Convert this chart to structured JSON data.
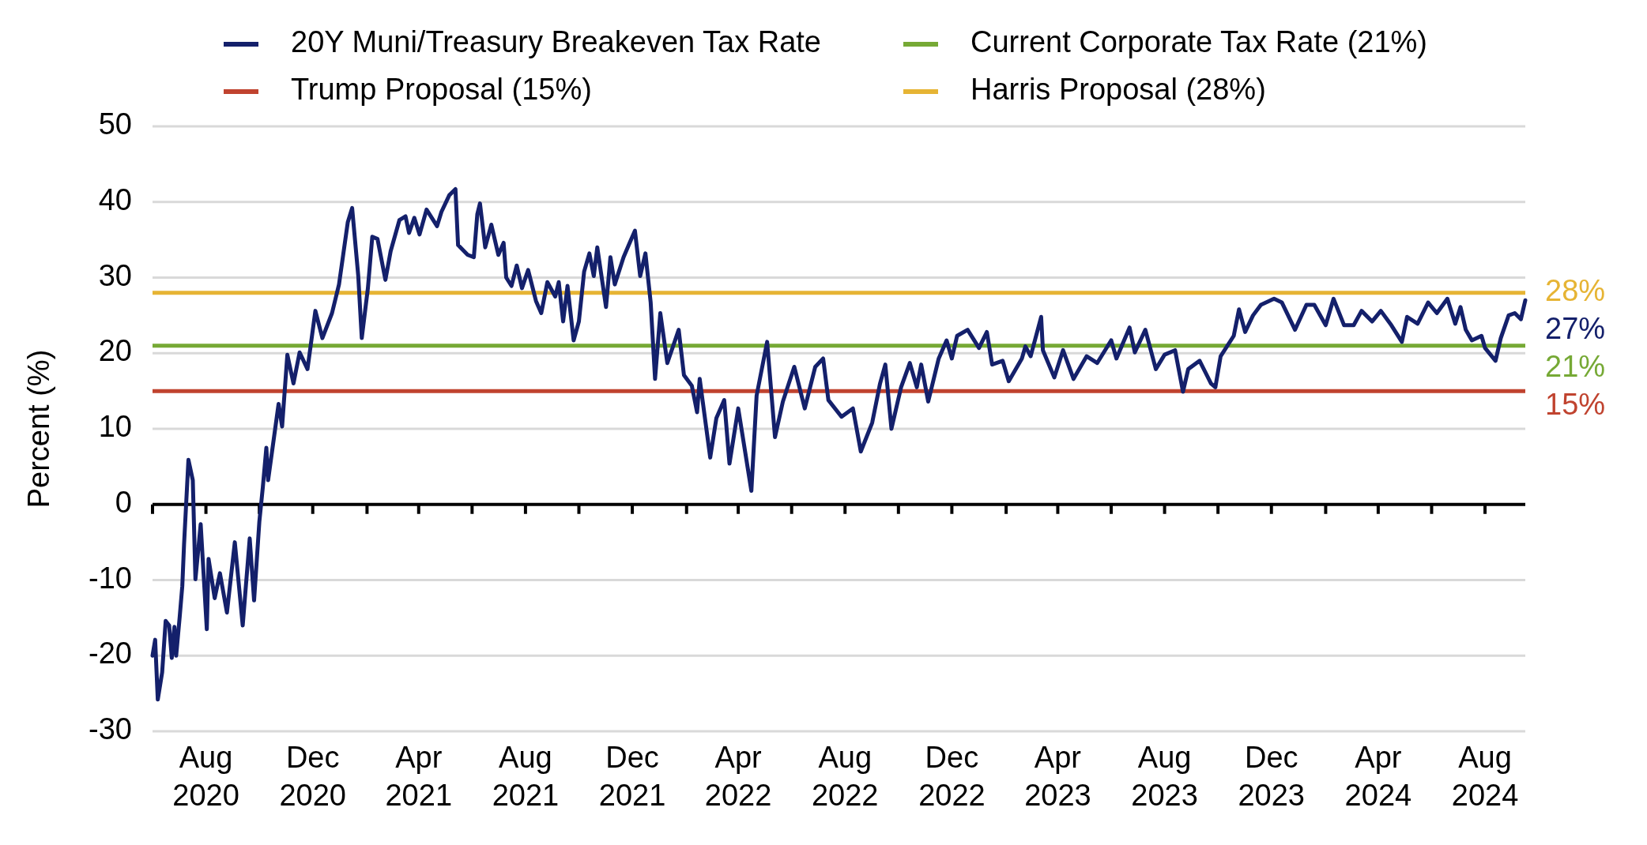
{
  "chart_data": {
    "type": "line",
    "ylabel": "Percent (%)",
    "xlim": [
      "2020-06-01",
      "2024-09-16"
    ],
    "ylim": [
      -30,
      50
    ],
    "yticks": [
      -30,
      -20,
      -10,
      0,
      10,
      20,
      30,
      40,
      50
    ],
    "xticks": [
      {
        "value": "2020-06-01",
        "label": null
      },
      {
        "value": "2020-08-01",
        "label": "Aug 2020"
      },
      {
        "value": "2020-10-01",
        "label": null
      },
      {
        "value": "2020-12-01",
        "label": "Dec 2020"
      },
      {
        "value": "2021-02-01",
        "label": null
      },
      {
        "value": "2021-04-01",
        "label": "Apr 2021"
      },
      {
        "value": "2021-06-01",
        "label": null
      },
      {
        "value": "2021-08-01",
        "label": "Aug 2021"
      },
      {
        "value": "2021-10-01",
        "label": null
      },
      {
        "value": "2021-12-01",
        "label": "Dec 2021"
      },
      {
        "value": "2022-02-01",
        "label": null
      },
      {
        "value": "2022-04-01",
        "label": "Apr 2022"
      },
      {
        "value": "2022-06-01",
        "label": null
      },
      {
        "value": "2022-08-01",
        "label": "Aug 2022"
      },
      {
        "value": "2022-10-01",
        "label": null
      },
      {
        "value": "2022-12-01",
        "label": "Dec 2022"
      },
      {
        "value": "2023-02-01",
        "label": null
      },
      {
        "value": "2023-04-01",
        "label": "Apr 2023"
      },
      {
        "value": "2023-06-01",
        "label": null
      },
      {
        "value": "2023-08-01",
        "label": "Aug 2023"
      },
      {
        "value": "2023-10-01",
        "label": null
      },
      {
        "value": "2023-12-01",
        "label": "Dec 2023"
      },
      {
        "value": "2024-02-01",
        "label": null
      },
      {
        "value": "2024-04-01",
        "label": "Apr 2024"
      },
      {
        "value": "2024-06-01",
        "label": null
      },
      {
        "value": "2024-08-01",
        "label": "Aug 2024"
      }
    ],
    "grid": "y",
    "legend": "top",
    "marker": "none",
    "line_style": "solid",
    "series": [
      {
        "name": "20Y Muni/Treasury Breakeven Tax Rate",
        "color": "#14206b",
        "x": [
          "2020-06-01",
          "2020-06-04",
          "2020-06-07",
          "2020-06-12",
          "2020-06-16",
          "2020-06-20",
          "2020-06-23",
          "2020-06-26",
          "2020-06-28",
          "2020-07-02",
          "2020-07-05",
          "2020-07-07",
          "2020-07-12",
          "2020-07-17",
          "2020-07-20",
          "2020-07-26",
          "2020-08-02",
          "2020-08-04",
          "2020-08-11",
          "2020-08-17",
          "2020-08-25",
          "2020-09-03",
          "2020-09-12",
          "2020-09-20",
          "2020-09-25",
          "2020-10-01",
          "2020-10-05",
          "2020-10-09",
          "2020-10-11",
          "2020-10-23",
          "2020-10-27",
          "2020-11-02",
          "2020-11-09",
          "2020-11-16",
          "2020-11-25",
          "2020-12-04",
          "2020-12-12",
          "2020-12-23",
          "2020-12-31",
          "2021-01-05",
          "2021-01-10",
          "2021-01-15",
          "2021-01-22",
          "2021-01-26",
          "2021-02-02",
          "2021-02-07",
          "2021-02-13",
          "2021-02-22",
          "2021-02-28",
          "2021-03-10",
          "2021-03-17",
          "2021-03-21",
          "2021-03-27",
          "2021-04-02",
          "2021-04-10",
          "2021-04-22",
          "2021-04-27",
          "2021-05-06",
          "2021-05-13",
          "2021-05-16",
          "2021-05-27",
          "2021-06-03",
          "2021-06-07",
          "2021-06-10",
          "2021-06-16",
          "2021-06-23",
          "2021-07-01",
          "2021-07-07",
          "2021-07-10",
          "2021-07-16",
          "2021-07-22",
          "2021-07-28",
          "2021-08-04",
          "2021-08-13",
          "2021-08-19",
          "2021-08-26",
          "2021-09-04",
          "2021-09-08",
          "2021-09-13",
          "2021-09-18",
          "2021-09-25",
          "2021-10-01",
          "2021-10-07",
          "2021-10-13",
          "2021-10-18",
          "2021-10-22",
          "2021-11-01",
          "2021-11-06",
          "2021-11-11",
          "2021-11-21",
          "2021-11-28",
          "2021-12-04",
          "2021-12-10",
          "2021-12-16",
          "2021-12-22",
          "2021-12-27",
          "2022-01-02",
          "2022-01-10",
          "2022-01-23",
          "2022-01-29",
          "2022-02-07",
          "2022-02-13",
          "2022-02-16",
          "2022-02-28",
          "2022-03-07",
          "2022-03-16",
          "2022-03-22",
          "2022-04-01",
          "2022-04-16",
          "2022-04-22",
          "2022-05-04",
          "2022-05-13",
          "2022-05-22",
          "2022-06-04",
          "2022-06-16",
          "2022-06-28",
          "2022-07-07",
          "2022-07-13",
          "2022-07-28",
          "2022-08-10",
          "2022-08-19",
          "2022-09-01",
          "2022-09-10",
          "2022-09-16",
          "2022-09-23",
          "2022-10-04",
          "2022-10-14",
          "2022-10-22",
          "2022-10-27",
          "2022-11-04",
          "2022-11-16",
          "2022-11-25",
          "2022-12-01",
          "2022-12-07",
          "2022-12-19",
          "2023-01-01",
          "2023-01-10",
          "2023-01-16",
          "2023-01-28",
          "2023-02-04",
          "2023-02-19",
          "2023-02-23",
          "2023-03-01",
          "2023-03-13",
          "2023-03-15",
          "2023-03-28",
          "2023-04-07",
          "2023-04-19",
          "2023-05-04",
          "2023-05-16",
          "2023-06-01",
          "2023-06-07",
          "2023-06-22",
          "2023-06-28",
          "2023-07-10",
          "2023-07-22",
          "2023-08-01",
          "2023-08-13",
          "2023-08-22",
          "2023-08-28",
          "2023-09-10",
          "2023-09-23",
          "2023-09-28",
          "2023-10-04",
          "2023-10-19",
          "2023-10-25",
          "2023-11-01",
          "2023-11-10",
          "2023-11-19",
          "2023-12-04",
          "2023-12-13",
          "2023-12-28",
          "2024-01-10",
          "2024-01-19",
          "2024-02-01",
          "2024-02-10",
          "2024-02-22",
          "2024-03-04",
          "2024-03-13",
          "2024-03-25",
          "2024-04-04",
          "2024-04-16",
          "2024-04-28",
          "2024-05-04",
          "2024-05-16",
          "2024-05-28",
          "2024-06-07",
          "2024-06-19",
          "2024-06-28",
          "2024-07-04",
          "2024-07-10",
          "2024-07-17",
          "2024-07-28",
          "2024-08-01",
          "2024-08-13",
          "2024-08-19",
          "2024-08-28",
          "2024-09-04",
          "2024-09-11",
          "2024-09-16"
        ],
        "values": [
          -20,
          -17.9,
          -25.8,
          -22.2,
          -15.4,
          -16,
          -20.3,
          -16.2,
          -20,
          -14.9,
          -10.8,
          -5.3,
          5.9,
          3.2,
          -9.9,
          -2.6,
          -16.5,
          -7.2,
          -12.4,
          -9.1,
          -14.3,
          -5,
          -16,
          -4.5,
          -12.7,
          -2.3,
          2.3,
          7.5,
          3.2,
          13.3,
          10.3,
          19.8,
          16,
          20.1,
          17.9,
          25.6,
          22,
          25.3,
          29.1,
          33.2,
          37.3,
          39.2,
          30.2,
          22,
          28.6,
          35.4,
          35.1,
          29.7,
          33.5,
          37.6,
          38.1,
          35.9,
          37.9,
          35.7,
          39,
          36.8,
          38.7,
          40.9,
          41.7,
          34.3,
          33,
          32.7,
          38.4,
          39.8,
          34,
          37,
          33,
          34.6,
          30,
          28.9,
          31.6,
          28.6,
          31,
          26.9,
          25.3,
          29.4,
          27.5,
          29.4,
          24.2,
          28.9,
          21.7,
          24.2,
          30.8,
          33.2,
          30.2,
          34,
          26.1,
          32.7,
          29.1,
          32.7,
          34.6,
          36.2,
          30.2,
          33.2,
          26.7,
          16.6,
          25.3,
          18.7,
          23.1,
          17.1,
          15.7,
          12.2,
          16.6,
          6.2,
          11.4,
          13.8,
          5.4,
          12.7,
          1.8,
          14.4,
          21.5,
          8.9,
          13.6,
          18.2,
          12.7,
          18.2,
          19.3,
          13.8,
          11.6,
          12.7,
          7,
          10.8,
          16,
          18.5,
          10,
          15.5,
          18.7,
          15.5,
          18.5,
          13.6,
          19.3,
          21.7,
          19.3,
          22.3,
          23.1,
          20.7,
          22.8,
          18.5,
          19,
          16.3,
          19.3,
          20.9,
          19.6,
          24.8,
          20.4,
          16.8,
          20.4,
          16.6,
          19.6,
          18.7,
          21.7,
          19.3,
          23.4,
          20.1,
          23.1,
          17.9,
          19.8,
          20.4,
          14.9,
          17.9,
          19,
          16,
          15.5,
          19.6,
          22.3,
          25.8,
          22.8,
          25,
          26.4,
          27.2,
          26.7,
          23.1,
          26.4,
          26.4,
          23.7,
          27.2,
          23.7,
          23.7,
          25.6,
          24.2,
          25.6,
          23.7,
          21.5,
          24.8,
          23.9,
          26.7,
          25.3,
          27.2,
          23.9,
          26.1,
          23.1,
          21.7,
          22.3,
          20.7,
          19,
          22,
          25,
          25.3,
          24.5,
          27
        ]
      }
    ],
    "ref_lines": [
      {
        "axis": "y",
        "value": 21,
        "label": "Current Corporate Tax Rate (21%)",
        "color": "#76a935"
      },
      {
        "axis": "y",
        "value": 15,
        "label": "Trump Proposal (15%)",
        "color": "#c0432f"
      },
      {
        "axis": "y",
        "value": 28,
        "label": "Harris Proposal (28%)",
        "color": "#e6b434"
      }
    ],
    "annotations": [
      {
        "text": "28%",
        "x": "2024-09-16",
        "y": 28
      },
      {
        "text": "27%",
        "x": "2024-09-16",
        "y": 27
      },
      {
        "text": "21%",
        "x": "2024-09-16",
        "y": 21
      },
      {
        "text": "15%",
        "x": "2024-09-16",
        "y": 15
      }
    ]
  }
}
